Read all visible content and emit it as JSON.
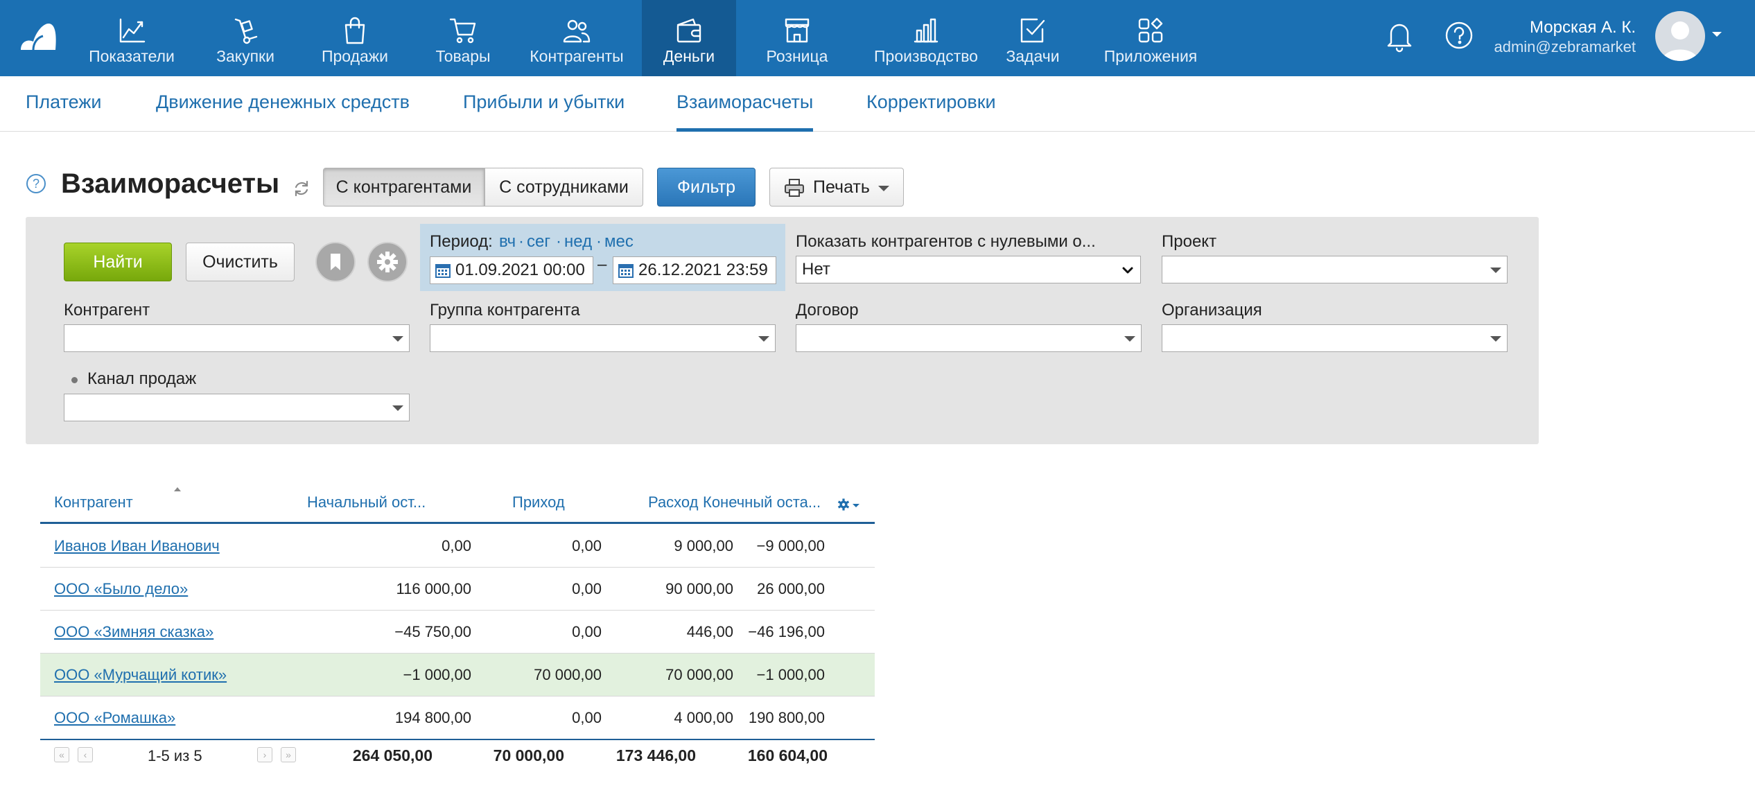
{
  "nav": {
    "items": [
      {
        "label": "Показатели",
        "icon": "chart-line-icon"
      },
      {
        "label": "Закупки",
        "icon": "hand-truck-icon"
      },
      {
        "label": "Продажи",
        "icon": "shopping-bag-icon"
      },
      {
        "label": "Товары",
        "icon": "cart-icon"
      },
      {
        "label": "Контрагенты",
        "icon": "people-icon"
      },
      {
        "label": "Деньги",
        "icon": "wallet-icon"
      },
      {
        "label": "Розница",
        "icon": "store-icon"
      },
      {
        "label": "Производство",
        "icon": "factory-icon"
      },
      {
        "label": "Задачи",
        "icon": "task-check-icon"
      },
      {
        "label": "Приложения",
        "icon": "apps-grid-icon"
      }
    ],
    "active": "Деньги",
    "user_name": "Морская А. К.",
    "user_email": "admin@zebramarket"
  },
  "subnav": {
    "tabs": [
      "Платежи",
      "Движение денежных средств",
      "Прибыли и убытки",
      "Взаиморасчеты",
      "Корректировки"
    ],
    "active": "Взаиморасчеты"
  },
  "toolbar": {
    "help_mark": "?",
    "title": "Взаиморасчеты",
    "seg_contractors": "С контрагентами",
    "seg_employees": "С сотрудниками",
    "filter": "Фильтр",
    "print": "Печать"
  },
  "filter": {
    "find": "Найти",
    "clear": "Очистить",
    "period_label": "Период:",
    "period_links": [
      "вч",
      "сег",
      "нед",
      "мес"
    ],
    "period_sep": "·",
    "date_from": "01.09.2021 00:00",
    "date_dash": "–",
    "date_to": "26.12.2021 23:59",
    "zero_label": "Показать контрагентов с нулевыми о...",
    "zero_value": "Нет",
    "project_label": "Проект",
    "counterparty_label": "Контрагент",
    "group_label": "Группа контрагента",
    "contract_label": "Договор",
    "org_label": "Организация",
    "channel_label": "Канал продаж"
  },
  "table": {
    "headers": [
      "Контрагент",
      "Начальный ост...",
      "Приход",
      "Расход",
      "Конечный оста..."
    ],
    "rows": [
      {
        "name": "Иванов Иван Иванович",
        "start": "0,00",
        "income": "0,00",
        "expense": "9 000,00",
        "end": "−9 000,00",
        "highlight": false
      },
      {
        "name": "ООО «Было дело»",
        "start": "116 000,00",
        "income": "0,00",
        "expense": "90 000,00",
        "end": "26 000,00",
        "highlight": false
      },
      {
        "name": "ООО «Зимняя сказка»",
        "start": "−45 750,00",
        "income": "0,00",
        "expense": "446,00",
        "end": "−46 196,00",
        "highlight": false
      },
      {
        "name": "ООО «Мурчащий котик»",
        "start": "−1 000,00",
        "income": "70 000,00",
        "expense": "70 000,00",
        "end": "−1 000,00",
        "highlight": true
      },
      {
        "name": "ООО «Ромашка»",
        "start": "194 800,00",
        "income": "0,00",
        "expense": "4 000,00",
        "end": "190 800,00",
        "highlight": false
      }
    ],
    "pagination": "1-5 из 5",
    "totals": {
      "start": "264 050,00",
      "income": "70 000,00",
      "expense": "173 446,00",
      "end": "160 604,00"
    }
  },
  "colors": {
    "nav_bg": "#1b70b3",
    "nav_active": "#145a93",
    "link": "#1f6fae",
    "find_btn": "#8cbc17",
    "filter_btn": "#3a88c9",
    "highlight_row": "#e2f1de"
  }
}
